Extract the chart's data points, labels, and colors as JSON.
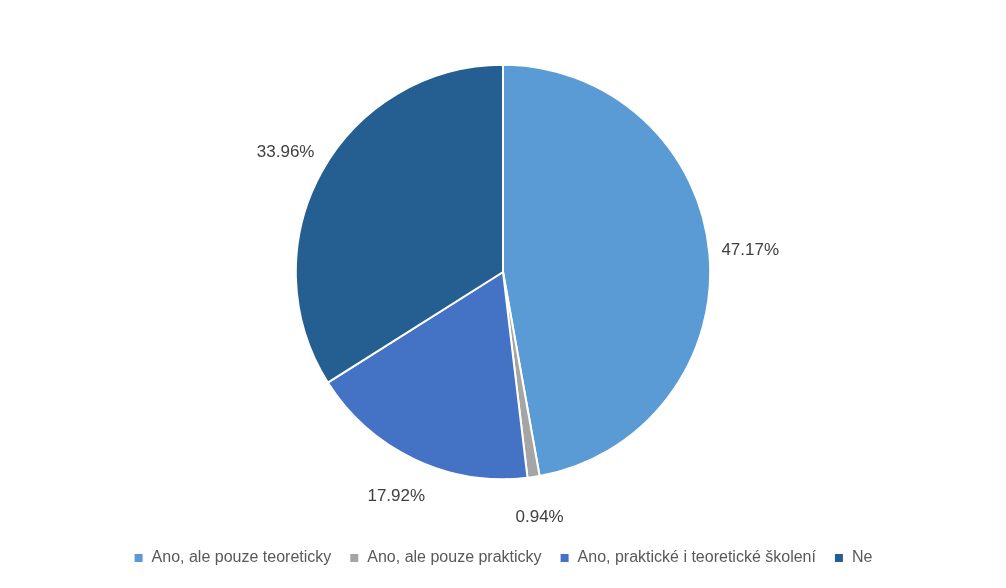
{
  "chart_data": {
    "type": "pie",
    "categories": [
      "Ano, ale pouze teoreticky",
      "Ano, ale pouze prakticky",
      "Ano, praktické i teoretické školení",
      "Ne"
    ],
    "values": [
      47.17,
      0.94,
      17.92,
      33.96
    ],
    "colors": [
      "#5b9bd5",
      "#a5a5a5",
      "#4472c4",
      "#255e91"
    ],
    "value_labels": [
      "47.17%",
      "0.94%",
      "17.92%",
      "33.96%"
    ],
    "legend": "bottom"
  }
}
